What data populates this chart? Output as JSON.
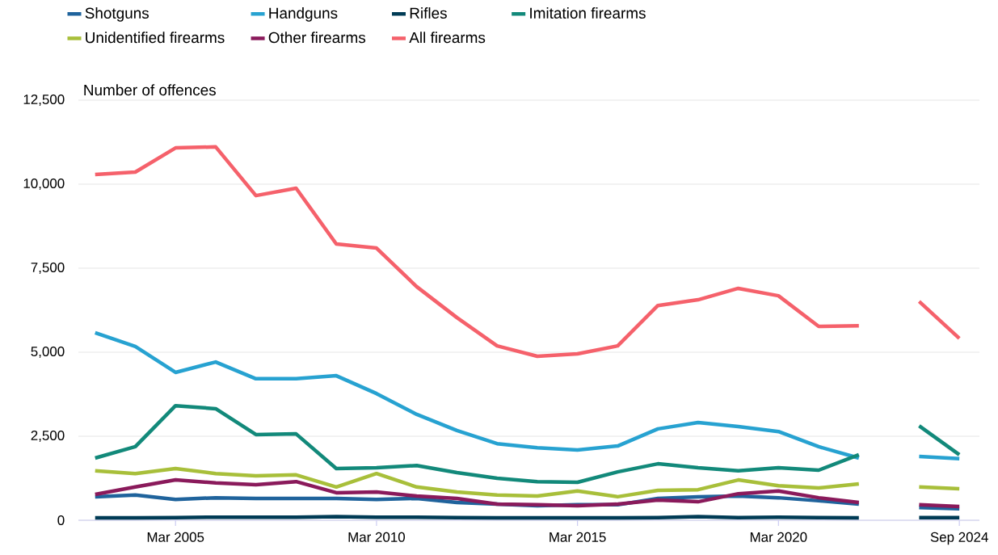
{
  "chart_data": {
    "type": "line",
    "ylabel": "Number of offences",
    "x": [
      "2003-03",
      "2004-03",
      "2005-03",
      "2006-03",
      "2007-03",
      "2008-03",
      "2009-03",
      "2010-03",
      "2011-03",
      "2012-03",
      "2013-03",
      "2014-03",
      "2015-03",
      "2016-03",
      "2017-03",
      "2018-03",
      "2019-03",
      "2020-03",
      "2021-03",
      "2022-03",
      "2023-03",
      "2023-09",
      "2024-09"
    ],
    "series": [
      {
        "name": "Shotguns",
        "color": "#1f639c",
        "values": [
          700,
          750,
          620,
          670,
          650,
          650,
          650,
          620,
          650,
          530,
          480,
          430,
          460,
          460,
          650,
          700,
          720,
          670,
          580,
          480,
          null,
          380,
          340
        ]
      },
      {
        "name": "Handguns",
        "color": "#27a2d1",
        "values": [
          5580,
          5170,
          4400,
          4710,
          4210,
          4210,
          4300,
          3770,
          3150,
          2670,
          2280,
          2160,
          2090,
          2210,
          2720,
          2910,
          2790,
          2640,
          2190,
          1850,
          null,
          1900,
          1830
        ]
      },
      {
        "name": "Rifles",
        "color": "#003b55",
        "values": [
          70,
          70,
          80,
          90,
          90,
          90,
          110,
          90,
          90,
          80,
          70,
          70,
          70,
          70,
          80,
          110,
          80,
          90,
          80,
          70,
          null,
          80,
          80
        ]
      },
      {
        "name": "Imitation firearms",
        "color": "#12897a",
        "values": [
          1850,
          2190,
          3410,
          3320,
          2550,
          2570,
          1540,
          1560,
          1630,
          1420,
          1250,
          1150,
          1130,
          1440,
          1680,
          1560,
          1470,
          1560,
          1490,
          1950,
          null,
          2810,
          1950
        ]
      },
      {
        "name": "Unidentified firearms",
        "color": "#a8bf3a",
        "values": [
          1470,
          1390,
          1540,
          1390,
          1320,
          1350,
          990,
          1390,
          990,
          840,
          750,
          720,
          870,
          700,
          890,
          910,
          1200,
          1030,
          960,
          1080,
          null,
          990,
          940
        ]
      },
      {
        "name": "Other firearms",
        "color": "#8a1a5b",
        "values": [
          770,
          990,
          1200,
          1110,
          1060,
          1150,
          820,
          840,
          720,
          650,
          480,
          460,
          430,
          480,
          600,
          550,
          790,
          870,
          670,
          530,
          null,
          460,
          410
        ]
      },
      {
        "name": "All firearms",
        "color": "#f5616b",
        "values": [
          10290,
          10360,
          11080,
          11110,
          9660,
          9880,
          8220,
          8100,
          6950,
          6030,
          5190,
          4880,
          4950,
          5190,
          6390,
          6560,
          6900,
          6680,
          5770,
          5790,
          null,
          6510,
          5410
        ]
      }
    ],
    "xlim": [
      "2002-10",
      "2025-03"
    ],
    "xticks": [
      {
        "value": "2005-03",
        "label": "Mar 2005"
      },
      {
        "value": "2010-03",
        "label": "Mar 2010"
      },
      {
        "value": "2015-03",
        "label": "Mar 2015"
      },
      {
        "value": "2020-03",
        "label": "Mar 2020"
      },
      {
        "value": "2024-09",
        "label": "Sep 2024"
      }
    ],
    "ylim": [
      0,
      12500
    ],
    "yticks": [
      0,
      {
        "value": 2500,
        "label": "2,500"
      },
      {
        "value": 5000,
        "label": "5,000"
      },
      {
        "value": 7500,
        "label": "7,500"
      },
      {
        "value": 10000,
        "label": "10,000"
      },
      {
        "value": 12500,
        "label": "12,500"
      }
    ],
    "grid": "y",
    "legend": "top",
    "marker": "none",
    "line_style": "solid"
  }
}
